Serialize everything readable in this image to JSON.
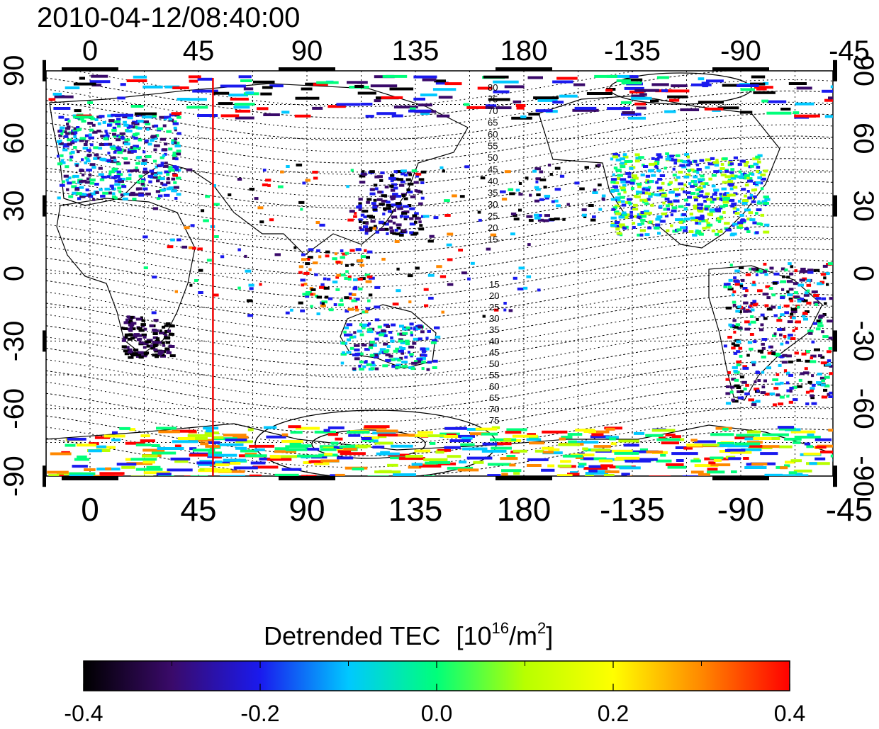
{
  "title": "2010-04-12/08:40:00",
  "map": {
    "lon_ticks": [
      "0",
      "45",
      "90",
      "135",
      "180",
      "-135",
      "-90",
      "-45"
    ],
    "lat_ticks": [
      "90",
      "60",
      "30",
      "0",
      "-30",
      "-60",
      "-90"
    ],
    "meridian_marker_lon": 51,
    "meridian_marker_color": "#ee0000",
    "contour_labels_north": [
      "80",
      "75",
      "70",
      "65",
      "60",
      "55",
      "50",
      "45",
      "40",
      "35",
      "30",
      "25",
      "20",
      "15"
    ],
    "contour_labels_south": [
      "15",
      "20",
      "25",
      "30",
      "35",
      "40",
      "45",
      "50",
      "55",
      "60",
      "65",
      "70",
      "75"
    ]
  },
  "colorbar": {
    "label": "Detrended TEC",
    "unit_base": "[10",
    "unit_exp": "16",
    "unit_mid": "/m",
    "unit_exp2": "2",
    "unit_end": "]",
    "ticks": [
      "-0.4",
      "-0.2",
      "0.0",
      "0.2",
      "0.4"
    ],
    "min": -0.4,
    "max": 0.4,
    "colors": [
      "#000000",
      "#3a0a6a",
      "#1a1aee",
      "#00c8ff",
      "#00ff7a",
      "#b8ff00",
      "#ffff00",
      "#ff8800",
      "#ff0000"
    ]
  }
}
